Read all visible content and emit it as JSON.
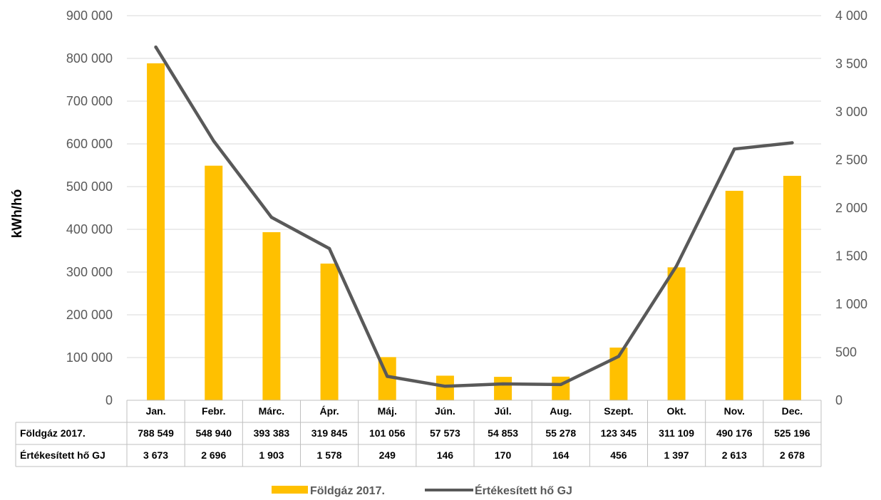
{
  "chart_data": {
    "type": "bar",
    "categories": [
      "Jan.",
      "Febr.",
      "Márc.",
      "Ápr.",
      "Máj.",
      "Jún.",
      "Júl.",
      "Aug.",
      "Szept.",
      "Okt.",
      "Nov.",
      "Dec."
    ],
    "series": [
      {
        "name": "Földgáz 2017.",
        "type": "bar",
        "axis": "left",
        "color": "#FFC000",
        "values": [
          788549,
          548940,
          393383,
          319845,
          101056,
          57573,
          54853,
          55278,
          123345,
          311109,
          490176,
          525196
        ],
        "labels": [
          "788 549",
          "548 940",
          "393 383",
          "319 845",
          "101 056",
          "57 573",
          "54 853",
          "55 278",
          "123 345",
          "311 109",
          "490 176",
          "525 196"
        ]
      },
      {
        "name": "Értékesített hő GJ",
        "type": "line",
        "axis": "right",
        "color": "#595959",
        "values": [
          3673,
          2696,
          1903,
          1578,
          249,
          146,
          170,
          164,
          456,
          1397,
          2613,
          2678
        ],
        "labels": [
          "3 673",
          "2 696",
          "1 903",
          "1 578",
          "249",
          "146",
          "170",
          "164",
          "456",
          "1 397",
          "2 613",
          "2 678"
        ]
      }
    ],
    "ylabel": "kWh/hó",
    "ylim": [
      0,
      900000
    ],
    "y_ticks": [
      "0",
      "100 000",
      "200 000",
      "300 000",
      "400 000",
      "500 000",
      "600 000",
      "700 000",
      "800 000",
      "900 000"
    ],
    "y2lim": [
      0,
      4000
    ],
    "y2_ticks": [
      "0",
      "500",
      "1 000",
      "1 500",
      "2 000",
      "2 500",
      "3 000",
      "3 500",
      "4 000"
    ],
    "grid": true,
    "data_table": true,
    "legend": "bottom"
  }
}
